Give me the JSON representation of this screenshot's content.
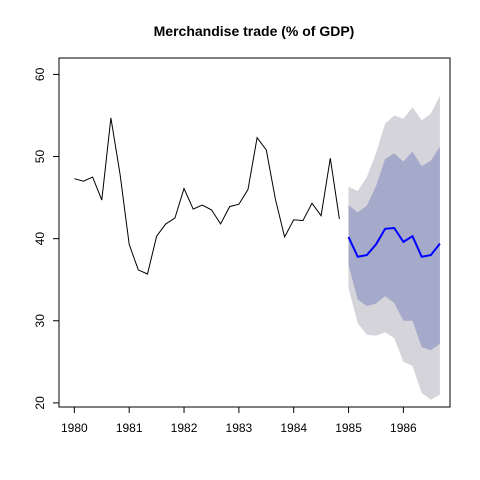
{
  "chart_data": {
    "type": "line",
    "title": "Merchandise trade (% of GDP)",
    "xlabel": "",
    "ylabel": "",
    "xlim": [
      1979.72,
      1986.85
    ],
    "ylim": [
      19.5,
      62
    ],
    "x_ticks": [
      1980,
      1981,
      1982,
      1983,
      1984,
      1985,
      1986
    ],
    "y_ticks": [
      20,
      30,
      40,
      50,
      60
    ],
    "grid": false,
    "legend": "none",
    "series": [
      {
        "role": "observed",
        "color": "#000000",
        "x": [
          1980.0,
          1980.1667,
          1980.3333,
          1980.5,
          1980.6667,
          1980.8333,
          1981.0,
          1981.1667,
          1981.3333,
          1981.5,
          1981.6667,
          1981.8333,
          1982.0,
          1982.1667,
          1982.3333,
          1982.5,
          1982.6667,
          1982.8333,
          1983.0,
          1983.1667,
          1983.3333,
          1983.5,
          1983.6667,
          1983.8333,
          1984.0,
          1984.1667,
          1984.3333,
          1984.5,
          1984.6667,
          1984.8333
        ],
        "y": [
          47.3,
          47.0,
          47.5,
          44.7,
          54.7,
          47.8,
          39.3,
          36.2,
          35.7,
          40.3,
          41.8,
          42.5,
          46.1,
          43.6,
          44.1,
          43.5,
          41.8,
          43.9,
          44.2,
          46.0,
          52.3,
          50.8,
          44.8,
          40.2,
          42.3,
          42.2,
          44.3,
          42.8,
          49.8,
          42.4
        ]
      }
    ],
    "forecast": {
      "color": "#0000ff",
      "band80_color": "#a5a9ca",
      "band95_color": "#d4d4da",
      "x": [
        1985.0,
        1985.1667,
        1985.3333,
        1985.5,
        1985.6667,
        1985.8333,
        1986.0,
        1986.1667,
        1986.3333,
        1986.5,
        1986.6667
      ],
      "mean": [
        40.2,
        37.8,
        38.0,
        39.3,
        41.2,
        41.3,
        39.6,
        40.3,
        37.8,
        38.0,
        39.4
      ],
      "lo80": [
        36.8,
        32.6,
        31.8,
        32.1,
        33.0,
        32.2,
        30.0,
        30.0,
        26.8,
        26.4,
        27.2
      ],
      "hi80": [
        44.1,
        43.2,
        44.0,
        46.4,
        49.7,
        50.4,
        49.4,
        50.6,
        48.8,
        49.5,
        51.2
      ],
      "lo95": [
        34.0,
        29.7,
        28.3,
        28.2,
        28.6,
        27.9,
        25.0,
        24.5,
        21.2,
        20.4,
        21.0
      ],
      "hi95": [
        46.3,
        45.8,
        47.5,
        50.4,
        54.0,
        55.0,
        54.6,
        56.0,
        54.4,
        55.2,
        57.4
      ]
    }
  }
}
